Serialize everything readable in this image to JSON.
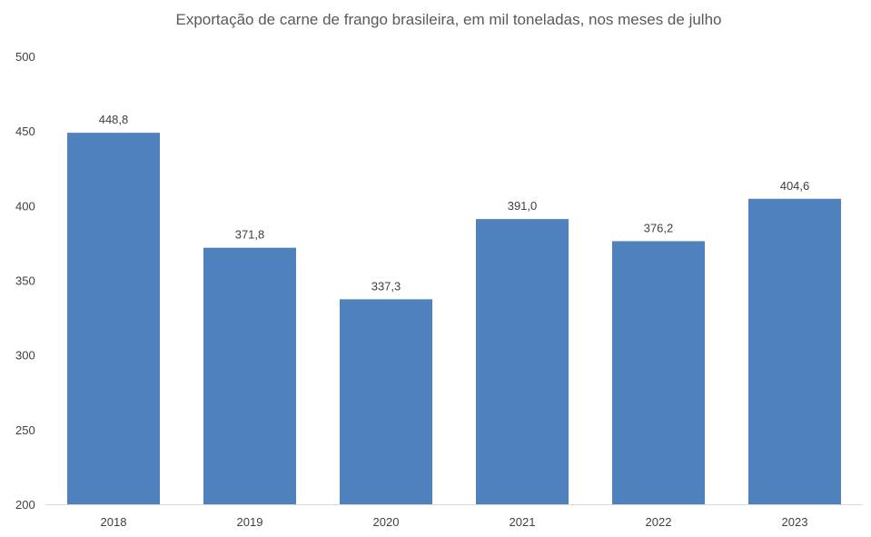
{
  "chart_data": {
    "type": "bar",
    "title": "Exportação de carne de frango brasileira, em mil toneladas, nos meses de julho",
    "xlabel": "",
    "ylabel": "",
    "categories": [
      "2018",
      "2019",
      "2020",
      "2021",
      "2022",
      "2023"
    ],
    "values": [
      448.8,
      371.8,
      337.3,
      391.0,
      376.2,
      404.6
    ],
    "value_labels": [
      "448,8",
      "371,8",
      "337,3",
      "391,0",
      "376,2",
      "404,6"
    ],
    "ylim": [
      200,
      500
    ],
    "yticks": [
      200,
      250,
      300,
      350,
      400,
      450,
      500
    ],
    "grid": false,
    "legend": "none",
    "bar_color": "#4f81bd"
  }
}
